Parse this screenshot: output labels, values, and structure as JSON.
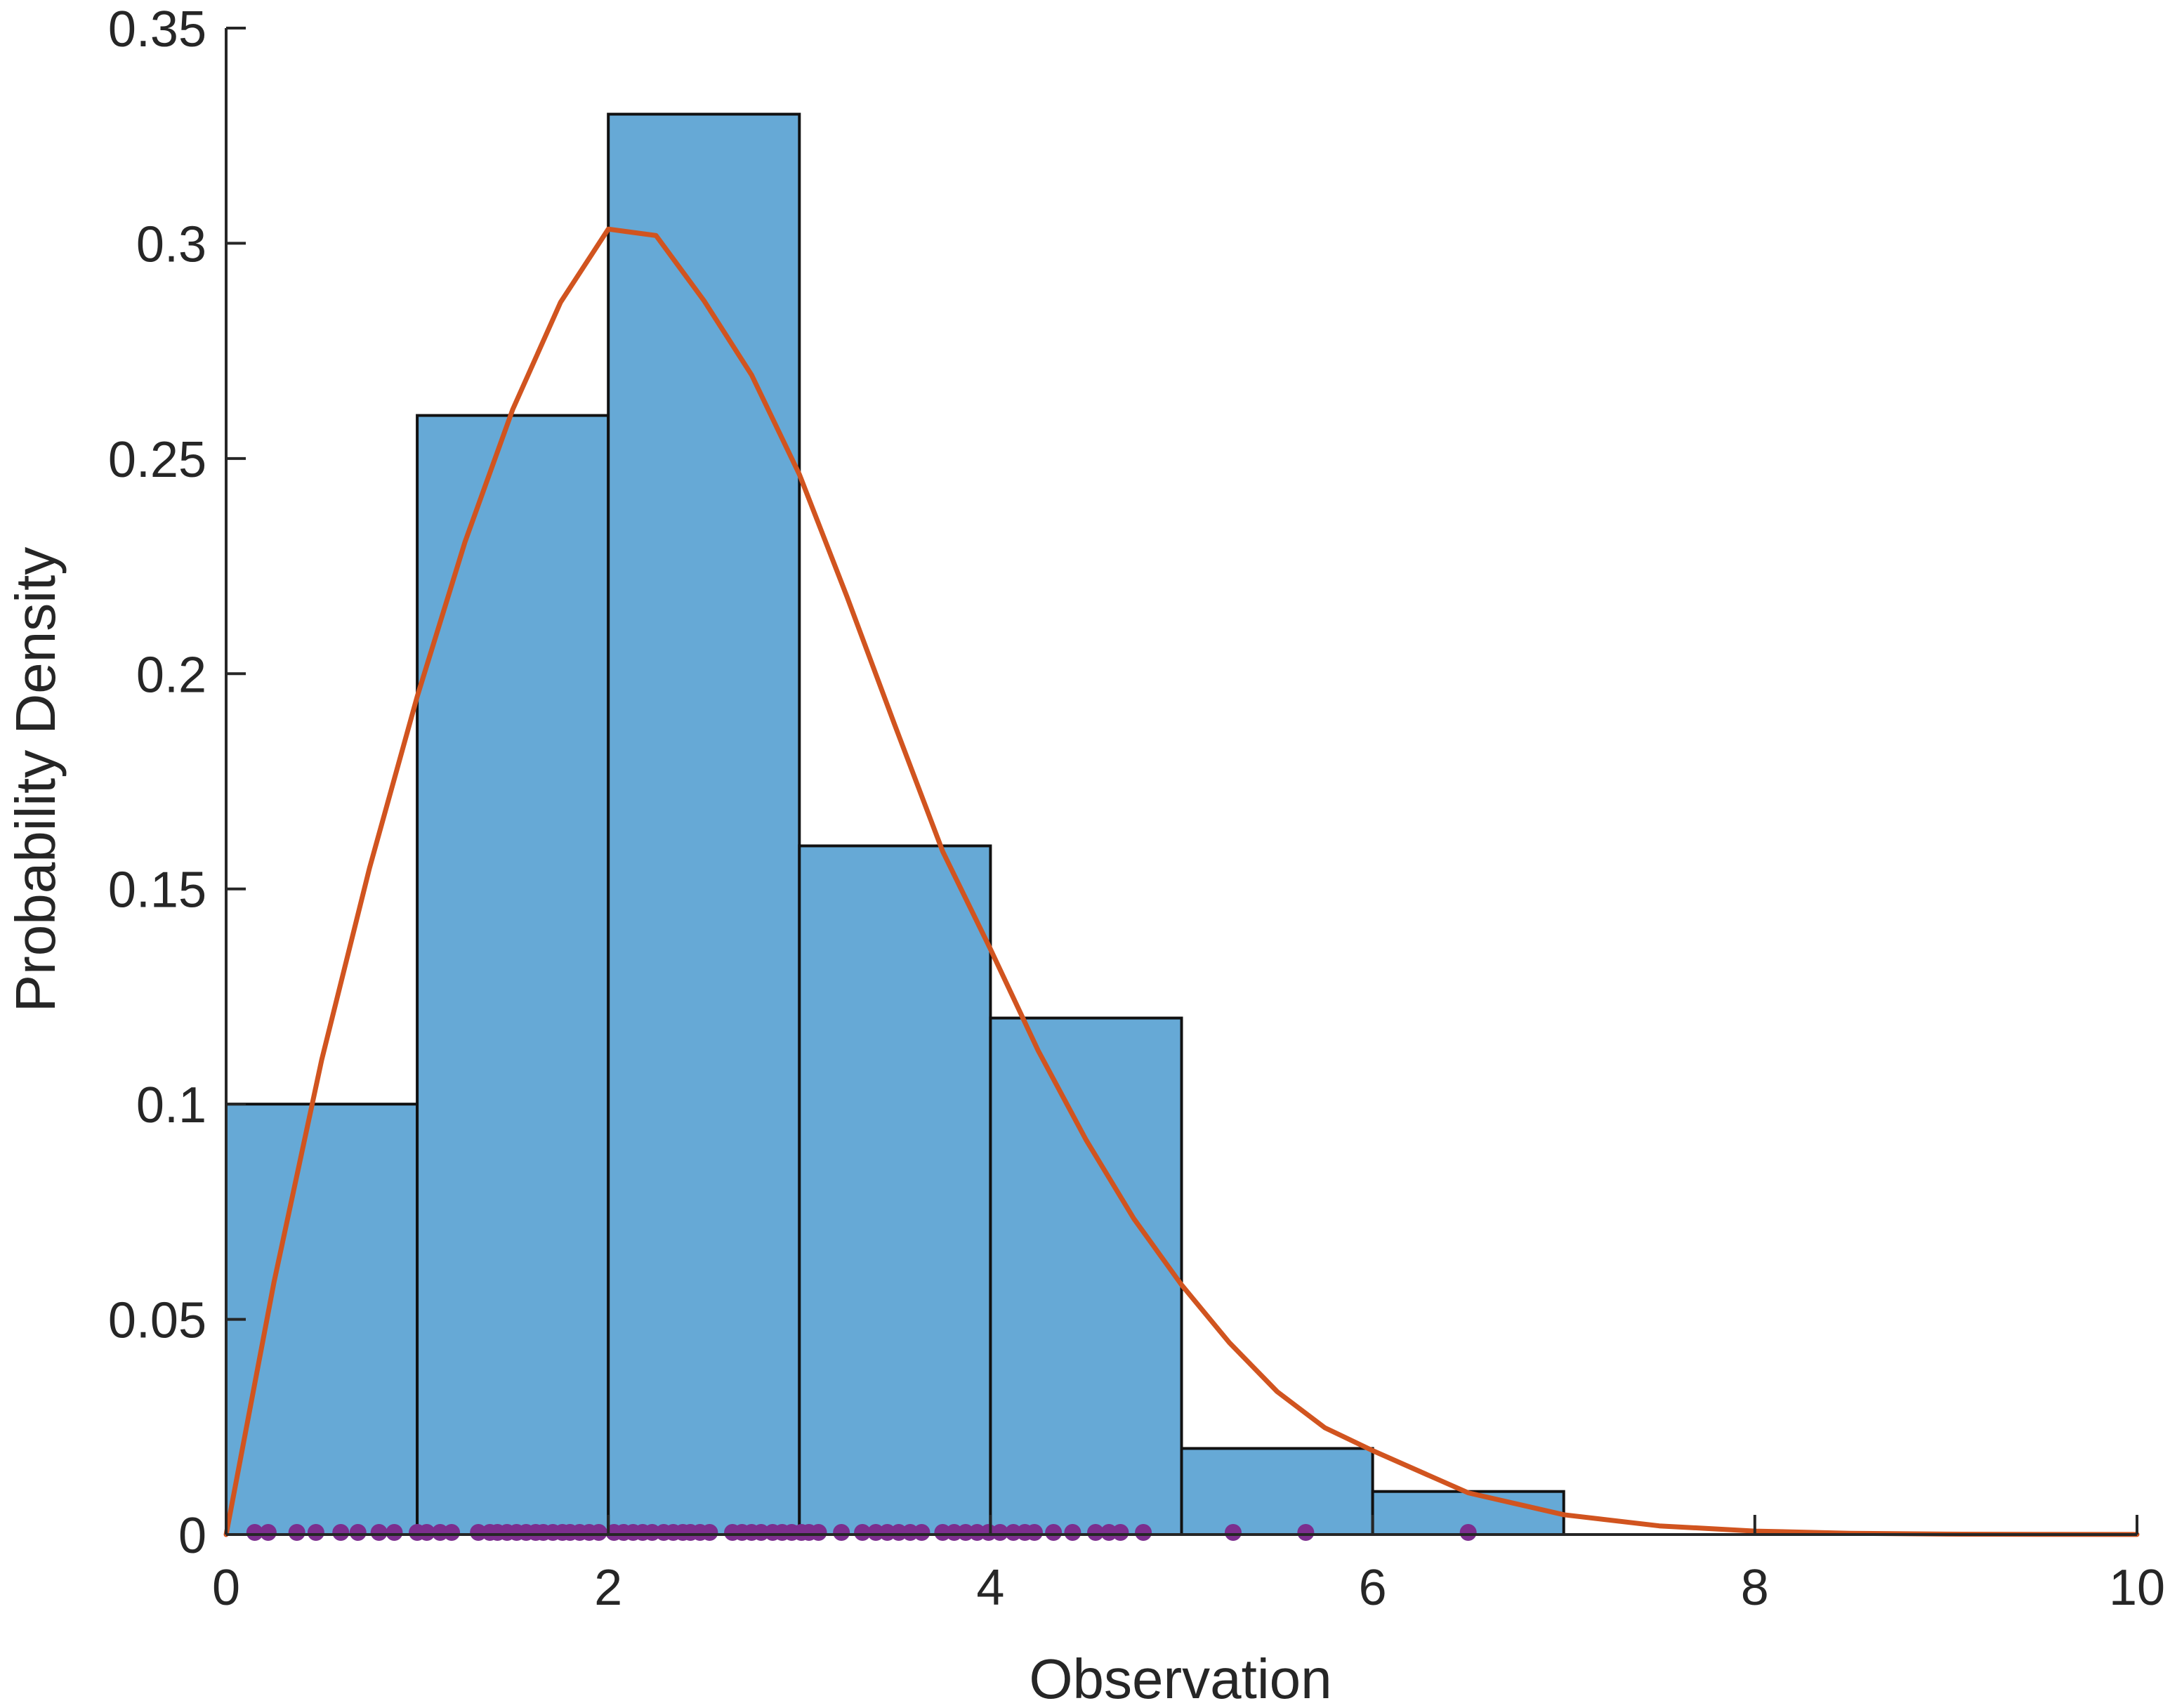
{
  "chart_data": {
    "type": "bar",
    "xlabel": "Observation",
    "ylabel": "Probability Density",
    "xlim": [
      0,
      10
    ],
    "ylim": [
      0,
      0.35
    ],
    "xticks": [
      "0",
      "2",
      "4",
      "6",
      "8",
      "10"
    ],
    "yticks": [
      "0",
      "0.05",
      "0.1",
      "0.15",
      "0.2",
      "0.25",
      "0.3",
      "0.35"
    ],
    "grid": false,
    "bins": [
      {
        "x0": 0,
        "x1": 1,
        "density": 0.1
      },
      {
        "x0": 1,
        "x1": 2,
        "density": 0.26
      },
      {
        "x0": 2,
        "x1": 3,
        "density": 0.33
      },
      {
        "x0": 3,
        "x1": 4,
        "density": 0.16
      },
      {
        "x0": 4,
        "x1": 5,
        "density": 0.12
      },
      {
        "x0": 5,
        "x1": 6,
        "density": 0.02
      },
      {
        "x0": 6,
        "x1": 7,
        "density": 0.01
      }
    ],
    "curve": {
      "points": [
        [
          0,
          0
        ],
        [
          0.25,
          0.0585
        ],
        [
          0.5,
          0.1103
        ],
        [
          0.75,
          0.1548
        ],
        [
          1,
          0.1947
        ],
        [
          1.25,
          0.2306
        ],
        [
          1.5,
          0.2614
        ],
        [
          1.75,
          0.2863
        ],
        [
          2,
          0.3033
        ],
        [
          2.25,
          0.3018
        ],
        [
          2.5,
          0.2867
        ],
        [
          2.75,
          0.2694
        ],
        [
          3,
          0.2463
        ],
        [
          3.25,
          0.2178
        ],
        [
          3.5,
          0.188
        ],
        [
          3.75,
          0.1587
        ],
        [
          4,
          0.136
        ],
        [
          4.25,
          0.1124
        ],
        [
          4.5,
          0.0917
        ],
        [
          4.75,
          0.0734
        ],
        [
          5,
          0.058
        ],
        [
          5.25,
          0.0446
        ],
        [
          5.5,
          0.0332
        ],
        [
          5.75,
          0.0248
        ],
        [
          6,
          0.0195
        ],
        [
          6.5,
          0.0097
        ],
        [
          7,
          0.0046
        ],
        [
          7.5,
          0.002
        ],
        [
          8,
          0.0008
        ],
        [
          8.5,
          0.0003
        ],
        [
          9,
          0.0001
        ],
        [
          9.5,
          3e-05
        ],
        [
          10,
          1e-05
        ]
      ]
    },
    "samples": [
      0.15,
      0.22,
      0.37,
      0.47,
      0.6,
      0.69,
      0.8,
      0.88,
      1.0,
      1.05,
      1.12,
      1.18,
      1.32,
      1.38,
      1.42,
      1.47,
      1.52,
      1.57,
      1.62,
      1.66,
      1.71,
      1.76,
      1.8,
      1.85,
      1.9,
      1.95,
      2.03,
      2.08,
      2.13,
      2.18,
      2.23,
      2.29,
      2.34,
      2.39,
      2.43,
      2.48,
      2.53,
      2.65,
      2.7,
      2.75,
      2.8,
      2.86,
      2.91,
      2.96,
      3.01,
      3.05,
      3.1,
      3.22,
      3.33,
      3.4,
      3.46,
      3.52,
      3.58,
      3.64,
      3.75,
      3.81,
      3.87,
      3.93,
      3.99,
      4.05,
      4.12,
      4.18,
      4.23,
      4.33,
      4.43,
      4.55,
      4.62,
      4.68,
      4.8,
      5.27,
      5.65,
      6.5
    ],
    "colors": {
      "bar_fill": "#66a9d6",
      "bar_edge": "#111111",
      "curve": "#d1541f",
      "samples": "#7c2e8e",
      "axis": "#262626"
    }
  }
}
